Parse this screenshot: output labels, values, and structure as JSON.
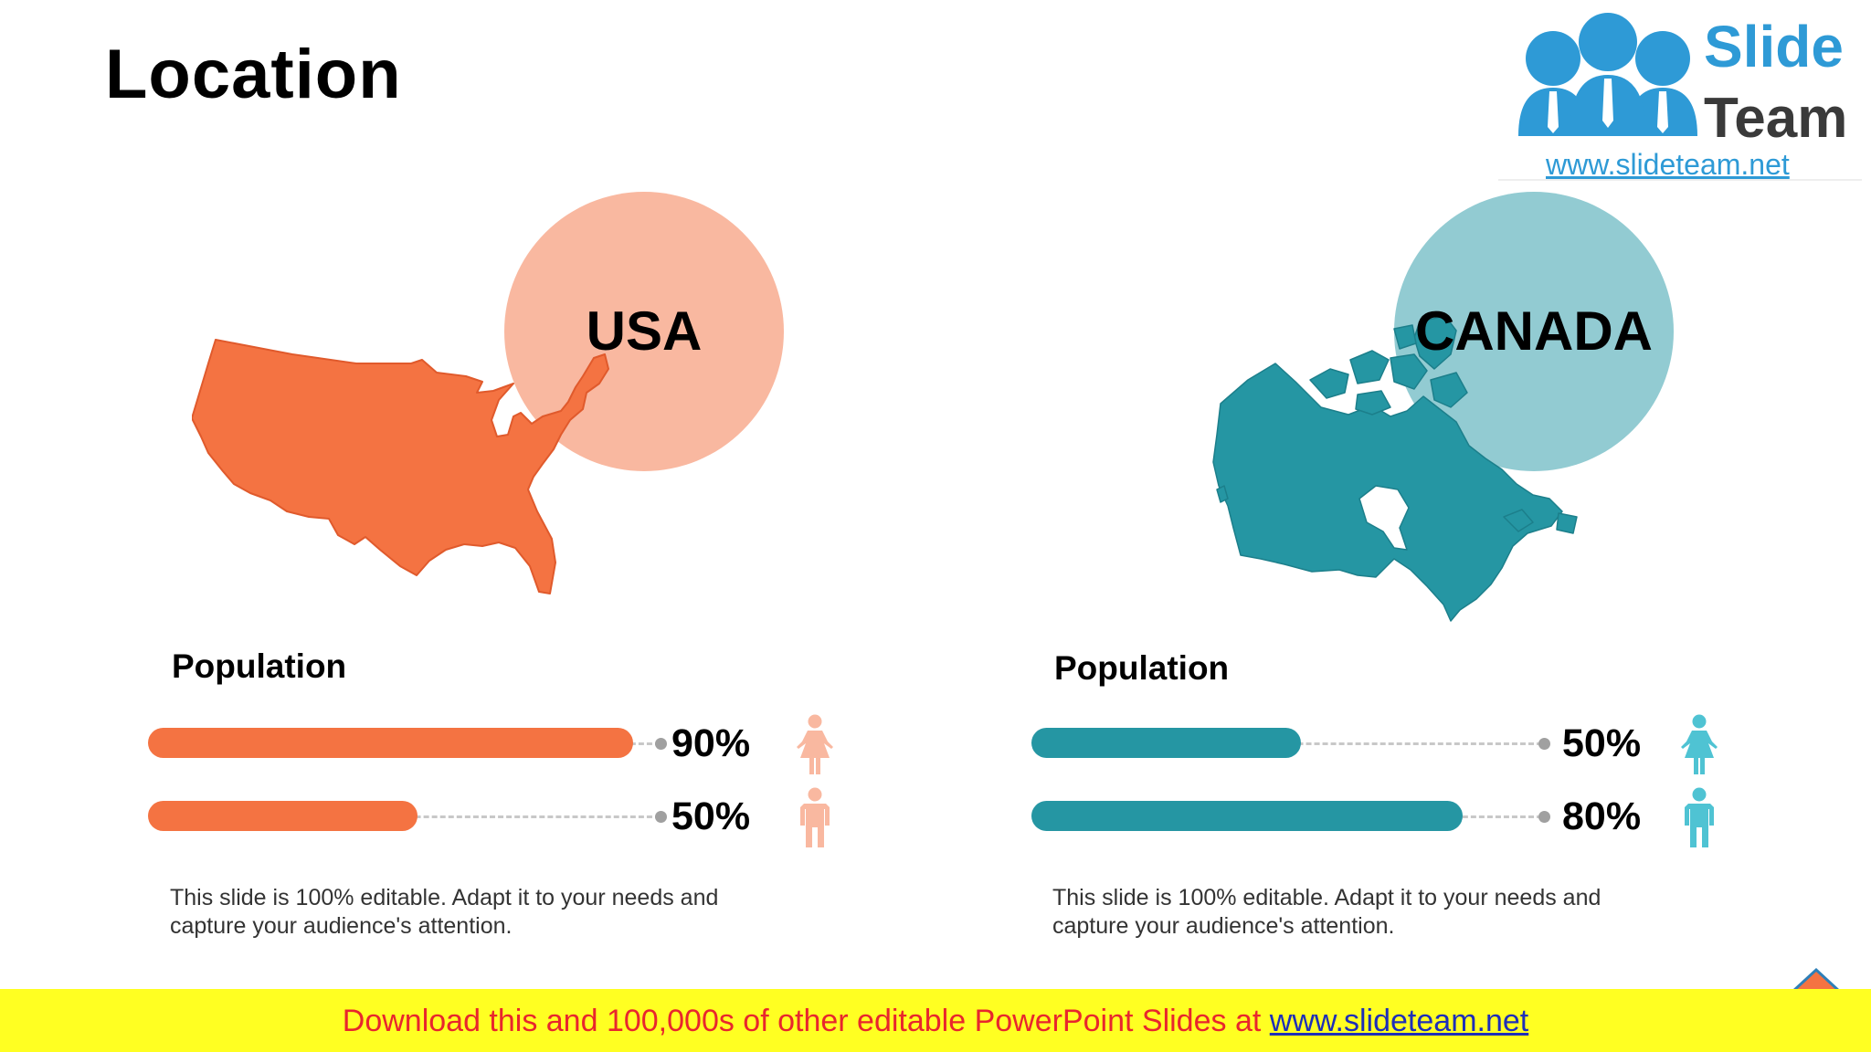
{
  "slide": {
    "title": "Location"
  },
  "logo": {
    "word1": "Slide",
    "word2": "Team",
    "url": "www.slideteam.net"
  },
  "colors": {
    "usa_accent": "#f47342",
    "usa_circle": "#f9b8a0",
    "usa_person": "#f9b8a0",
    "canada_accent": "#2596a3",
    "canada_circle": "#92cbd2",
    "canada_person": "#4fc3d3"
  },
  "panels": [
    {
      "country": "USA",
      "population_label": "Population",
      "bars": [
        {
          "percent_label": "90%",
          "value": 0.9,
          "icon": "female-person-icon"
        },
        {
          "percent_label": "50%",
          "value": 0.5,
          "icon": "male-person-icon"
        }
      ],
      "description": "This slide is 100% editable. Adapt it to your needs and capture your audience's attention."
    },
    {
      "country": "CANADA",
      "population_label": "Population",
      "bars": [
        {
          "percent_label": "50%",
          "value": 0.5,
          "icon": "female-person-icon"
        },
        {
          "percent_label": "80%",
          "value": 0.8,
          "icon": "male-person-icon"
        }
      ],
      "description": "This slide is 100% editable. Adapt it to your needs and capture your audience's attention."
    }
  ],
  "banner": {
    "text": "Download this and 100,000s of other editable PowerPoint Slides at ",
    "link": "www.slideteam.net"
  }
}
